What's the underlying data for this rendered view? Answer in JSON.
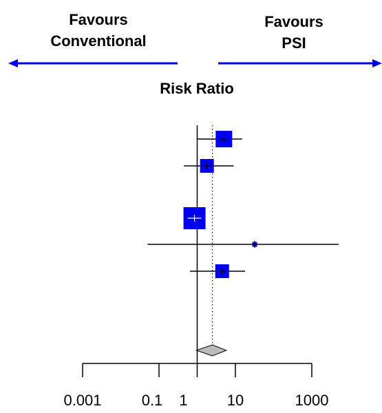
{
  "chart_data": {
    "type": "forest",
    "title": "Risk Ratio",
    "header_left": [
      "Favours",
      "Conventional"
    ],
    "header_right": [
      "Favours",
      "PSI"
    ],
    "x_scale": "log",
    "xlim": [
      0.001,
      1000
    ],
    "x_ticks": [
      {
        "value": 0.001,
        "label": "0.001"
      },
      {
        "value": 0.1,
        "label": "0.1"
      },
      {
        "value": 1,
        "label": "1"
      },
      {
        "value": 10,
        "label": "10"
      },
      {
        "value": 1000,
        "label": "1000"
      }
    ],
    "null_line": 1,
    "studies": [
      {
        "rr": 5.0,
        "lower": 1.0,
        "upper": 15.0,
        "weight_size": 24
      },
      {
        "rr": 1.8,
        "lower": 0.45,
        "upper": 9.0,
        "weight_size": 20
      },
      {
        "rr": 0.85,
        "lower": 0.85,
        "upper": 0.85,
        "weight_size": 32
      },
      {
        "rr": 32,
        "lower": 0.05,
        "upper": 5000,
        "weight_size": 7
      },
      {
        "rr": 4.5,
        "lower": 0.65,
        "upper": 18.0,
        "weight_size": 20
      }
    ],
    "pooled": {
      "rr": 2.5,
      "lower": 0.95,
      "upper": 5.8
    },
    "colors": {
      "box": "#0000ee",
      "arrow": "#0000ee",
      "diamond": "#bbbbbb",
      "line": "#000000"
    }
  }
}
